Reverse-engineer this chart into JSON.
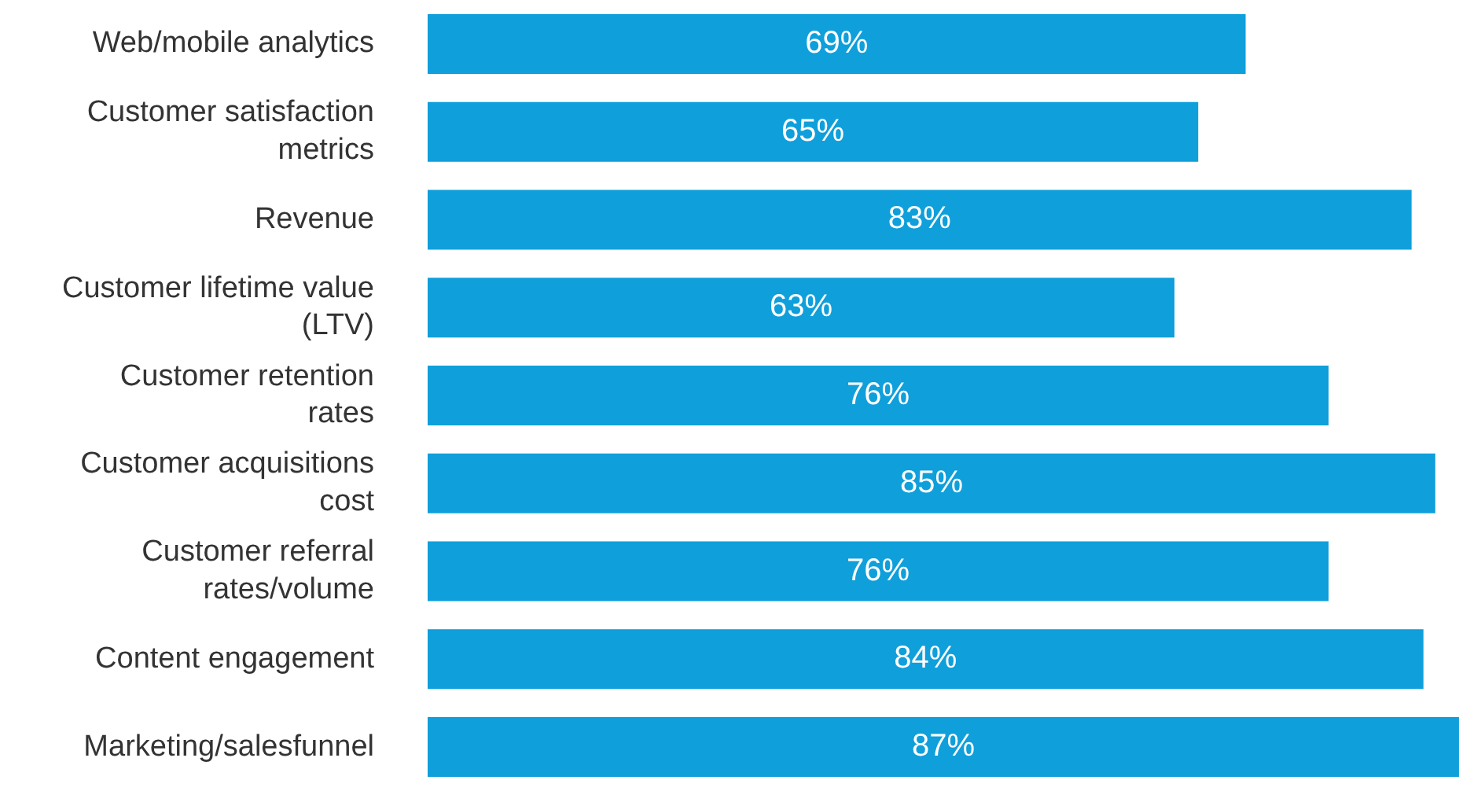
{
  "chart_data": {
    "type": "bar",
    "orientation": "horizontal",
    "categories": [
      "Web/mobile analytics",
      "Customer satisfaction metrics",
      "Revenue",
      "Customer lifetime value (LTV)",
      "Customer retention rates",
      "Customer acquisitions cost",
      "Customer referral rates/volume",
      "Content engagement",
      "Marketing/salesfunnel"
    ],
    "values": [
      69,
      65,
      83,
      63,
      76,
      85,
      76,
      84,
      87
    ],
    "value_labels": [
      "69%",
      "65%",
      "83%",
      "63%",
      "76%",
      "85%",
      "76%",
      "84%",
      "87%"
    ],
    "color": "#0f9fdb"
  }
}
